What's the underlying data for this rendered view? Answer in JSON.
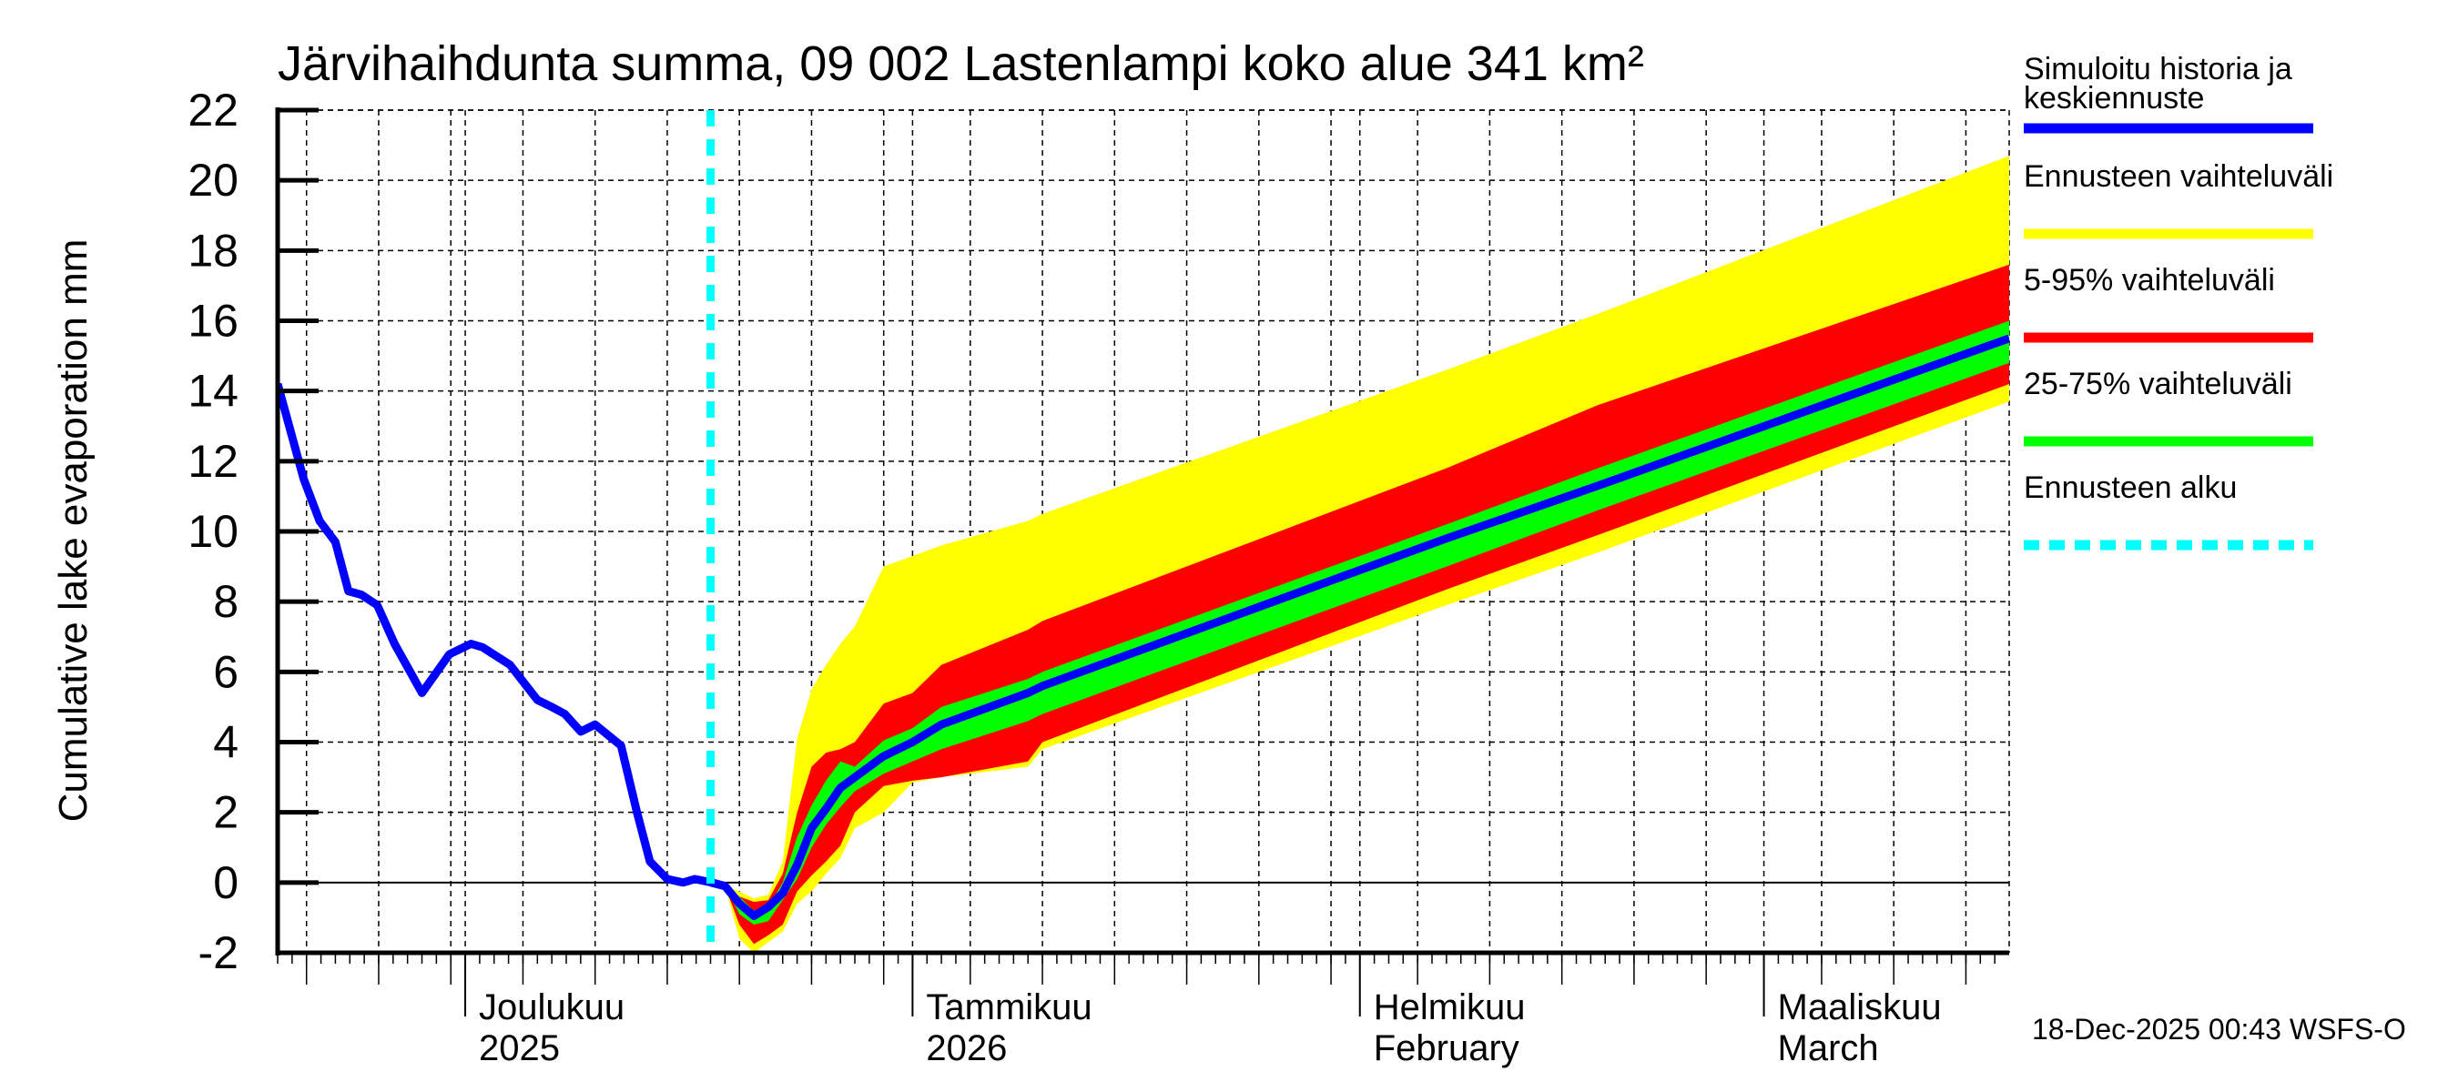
{
  "chart_data": {
    "type": "area",
    "title": "Järvihaihdunta summa, 09 002 Lastenlampi koko alue 341 km²",
    "ylabel": "Cumulative lake evaporation   mm",
    "xlabel": "",
    "ylim": [
      -2,
      22
    ],
    "yticks": [
      -2,
      0,
      2,
      4,
      6,
      8,
      10,
      12,
      14,
      16,
      18,
      20,
      22
    ],
    "x_start_date": "2025-11-18",
    "x_end_date": "2026-03-17",
    "grid": true,
    "legend_position": "right",
    "month_labels": [
      {
        "date": "2025-12-01",
        "line1": "Joulukuu",
        "line2": "2025"
      },
      {
        "date": "2026-01-01",
        "line1": "Tammikuu",
        "line2": "2026"
      },
      {
        "date": "2026-02-01",
        "line1": "Helmikuu",
        "line2": "February"
      },
      {
        "date": "2026-03-01",
        "line1": "Maaliskuu",
        "line2": "March"
      }
    ],
    "forecast_start_date": "2025-12-18",
    "history": {
      "name": "Simuloitu historia ja keskiennuste",
      "color": "#0000ff",
      "day_offsets_from_start": [
        0,
        1.8,
        2.9,
        4.0,
        4.9,
        5.8,
        6.9,
        8.1,
        10.0,
        11.9,
        13.4,
        14.2,
        16.1,
        18.0,
        19.0,
        19.9,
        21.0,
        22.0,
        23.8,
        24.9,
        25.8,
        27.0,
        28.1,
        28.9,
        30.1,
        31.0
      ],
      "values": [
        14.2,
        11.5,
        10.3,
        9.7,
        8.3,
        8.2,
        7.9,
        6.8,
        5.4,
        6.5,
        6.8,
        6.7,
        6.2,
        5.2,
        5.0,
        4.8,
        4.3,
        4.5,
        3.9,
        2.0,
        0.6,
        0.1,
        0.0,
        0.1,
        0.0,
        -0.1
      ]
    },
    "forecast": {
      "day_offsets_from_forecast_start": [
        0,
        1,
        2,
        3,
        4,
        5,
        6,
        7,
        8,
        9,
        10,
        12,
        14,
        16,
        22,
        23,
        51,
        61.5,
        90
      ],
      "median": [
        0.0,
        -0.1,
        -0.6,
        -0.95,
        -0.7,
        -0.3,
        0.5,
        1.55,
        2.1,
        2.7,
        3.0,
        3.6,
        4.0,
        4.5,
        5.4,
        5.6,
        9.8,
        11.3,
        15.5
      ],
      "p25": [
        0.0,
        -0.1,
        -0.9,
        -1.2,
        -1.1,
        -0.5,
        0.1,
        1.0,
        1.65,
        2.15,
        2.6,
        3.1,
        3.45,
        3.8,
        4.6,
        4.8,
        9.0,
        10.6,
        14.8
      ],
      "p75": [
        0.0,
        -0.1,
        -0.4,
        -0.8,
        -0.7,
        0.0,
        1.3,
        2.2,
        2.9,
        3.45,
        3.3,
        4.05,
        4.4,
        5.0,
        5.8,
        6.0,
        10.2,
        11.8,
        16.0
      ],
      "p5": [
        0.0,
        -0.1,
        -1.2,
        -1.75,
        -1.5,
        -1.2,
        -0.25,
        0.2,
        0.6,
        1.05,
        2.0,
        2.75,
        2.9,
        3.0,
        3.45,
        4.0,
        8.35,
        9.9,
        14.2
      ],
      "p95": [
        0.0,
        -0.1,
        -0.4,
        -0.55,
        -0.5,
        0.25,
        2.0,
        3.3,
        3.7,
        3.8,
        4.0,
        5.1,
        5.4,
        6.2,
        7.2,
        7.45,
        11.8,
        13.6,
        17.6
      ],
      "min": [
        0.0,
        -0.1,
        -1.6,
        -2.0,
        -1.7,
        -1.4,
        -0.6,
        -0.25,
        0.25,
        0.7,
        1.55,
        2.0,
        2.85,
        3.0,
        3.3,
        3.8,
        7.9,
        9.4,
        13.7
      ],
      "max": [
        0.0,
        -0.1,
        -0.25,
        -0.45,
        -0.35,
        0.6,
        4.1,
        5.5,
        6.2,
        6.8,
        7.3,
        9.0,
        9.3,
        9.6,
        10.3,
        10.5,
        14.6,
        16.2,
        20.7
      ]
    },
    "legend": [
      {
        "label": "Simuloitu historia ja",
        "label2": "keskiennuste",
        "color": "#0000ff",
        "style": "solid"
      },
      {
        "label": "Ennusteen vaihteluväli",
        "color": "#ffff00",
        "style": "solid"
      },
      {
        "label": "5-95% vaihteluväli",
        "color": "#ff0000",
        "style": "solid"
      },
      {
        "label": "25-75% vaihteluväli",
        "color": "#00ff00",
        "style": "solid"
      },
      {
        "label": "Ennusteen alku",
        "color": "#00ffff",
        "style": "dashed"
      }
    ],
    "colors": {
      "range": "#ffff00",
      "p5_95": "#ff0000",
      "p25_75": "#00ff00",
      "median": "#0000ff",
      "forecast_start": "#00ffff"
    }
  },
  "footer": {
    "timestamp": "18-Dec-2025 00:43 WSFS-O"
  }
}
